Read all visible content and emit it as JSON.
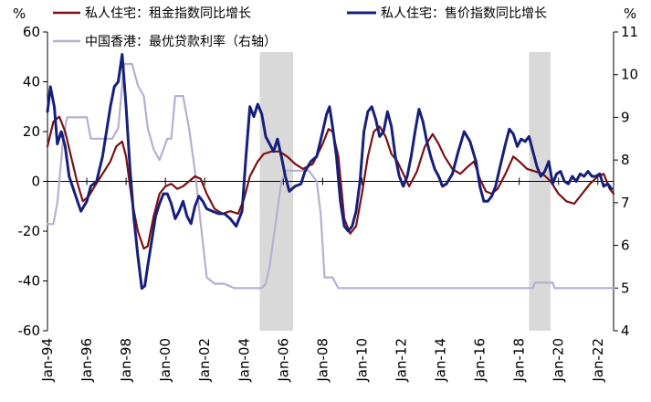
{
  "chart_data": {
    "type": "line",
    "title": "",
    "left_axis": {
      "unit": "%",
      "ylim": [
        -60,
        60
      ],
      "ticks": [
        60,
        40,
        20,
        0,
        -20,
        -40,
        -60
      ]
    },
    "right_axis": {
      "unit": "%",
      "ylim": [
        4,
        11
      ],
      "ticks": [
        11,
        10,
        9,
        8,
        7,
        6,
        5,
        4
      ]
    },
    "x_axis": {
      "range": [
        1994.0,
        2022.8
      ],
      "tick_labels": [
        "Jan-94",
        "Jan-96",
        "Jan-98",
        "Jan-00",
        "Jan-02",
        "Jan-04",
        "Jan-06",
        "Jan-08",
        "Jan-10",
        "Jan-12",
        "Jan-14",
        "Jan-16",
        "Jan-18",
        "Jan-20",
        "Jan-22"
      ],
      "tick_values": [
        1994,
        1996,
        1998,
        2000,
        2002,
        2004,
        2006,
        2008,
        2010,
        2012,
        2014,
        2016,
        2018,
        2020,
        2022
      ]
    },
    "grid": false,
    "legend_placement": "top",
    "shaded_periods": [
      [
        2004.8,
        2006.5
      ],
      [
        2018.5,
        2019.6
      ]
    ],
    "series": [
      {
        "name": "私人住宅：租金指数同比增长",
        "axis": "left",
        "color": "#7b1113",
        "points": [
          [
            1994.0,
            14
          ],
          [
            1994.3,
            24
          ],
          [
            1994.6,
            26
          ],
          [
            1994.9,
            20
          ],
          [
            1995.2,
            10
          ],
          [
            1995.5,
            0
          ],
          [
            1995.8,
            -8
          ],
          [
            1996.1,
            -6
          ],
          [
            1996.4,
            -2
          ],
          [
            1996.8,
            3
          ],
          [
            1997.2,
            8
          ],
          [
            1997.5,
            14
          ],
          [
            1997.8,
            16
          ],
          [
            1998.0,
            10
          ],
          [
            1998.3,
            -8
          ],
          [
            1998.6,
            -20
          ],
          [
            1998.9,
            -27
          ],
          [
            1999.1,
            -26
          ],
          [
            1999.4,
            -14
          ],
          [
            1999.7,
            -5
          ],
          [
            2000.0,
            -2
          ],
          [
            2000.3,
            -1
          ],
          [
            2000.6,
            -3
          ],
          [
            2000.9,
            -2
          ],
          [
            2001.2,
            0
          ],
          [
            2001.5,
            2
          ],
          [
            2001.8,
            1
          ],
          [
            2002.1,
            -5
          ],
          [
            2002.5,
            -11
          ],
          [
            2002.9,
            -13
          ],
          [
            2003.3,
            -12
          ],
          [
            2003.7,
            -13
          ],
          [
            2004.0,
            -7
          ],
          [
            2004.3,
            2
          ],
          [
            2004.7,
            8
          ],
          [
            2005.0,
            11
          ],
          [
            2005.4,
            12
          ],
          [
            2005.8,
            12
          ],
          [
            2006.2,
            10
          ],
          [
            2006.6,
            7
          ],
          [
            2007.0,
            5
          ],
          [
            2007.5,
            7
          ],
          [
            2008.0,
            15
          ],
          [
            2008.3,
            21
          ],
          [
            2008.5,
            20
          ],
          [
            2008.8,
            10
          ],
          [
            2009.1,
            -15
          ],
          [
            2009.4,
            -21
          ],
          [
            2009.7,
            -18
          ],
          [
            2010.0,
            -5
          ],
          [
            2010.3,
            10
          ],
          [
            2010.6,
            20
          ],
          [
            2010.9,
            22
          ],
          [
            2011.2,
            18
          ],
          [
            2011.5,
            11
          ],
          [
            2011.8,
            8
          ],
          [
            2012.1,
            3
          ],
          [
            2012.4,
            -2
          ],
          [
            2012.8,
            4
          ],
          [
            2013.2,
            14
          ],
          [
            2013.6,
            19
          ],
          [
            2013.9,
            15
          ],
          [
            2014.2,
            10
          ],
          [
            2014.6,
            5
          ],
          [
            2015.0,
            3
          ],
          [
            2015.4,
            6
          ],
          [
            2015.7,
            8
          ],
          [
            2016.0,
            1
          ],
          [
            2016.3,
            -4
          ],
          [
            2016.6,
            -5
          ],
          [
            2016.9,
            -3
          ],
          [
            2017.3,
            3
          ],
          [
            2017.7,
            10
          ],
          [
            2018.0,
            8
          ],
          [
            2018.4,
            5
          ],
          [
            2018.8,
            4
          ],
          [
            2019.2,
            3
          ],
          [
            2019.6,
            0
          ],
          [
            2020.0,
            -5
          ],
          [
            2020.4,
            -8
          ],
          [
            2020.8,
            -9
          ],
          [
            2021.2,
            -5
          ],
          [
            2021.6,
            -1
          ],
          [
            2022.0,
            2
          ],
          [
            2022.3,
            3
          ],
          [
            2022.6,
            -3
          ],
          [
            2022.8,
            -5
          ]
        ]
      },
      {
        "name": "私人住宅：售价指数同比增长",
        "axis": "left",
        "color": "#16207a",
        "points": [
          [
            1994.0,
            28
          ],
          [
            1994.15,
            38
          ],
          [
            1994.35,
            30
          ],
          [
            1994.5,
            15
          ],
          [
            1994.7,
            20
          ],
          [
            1994.9,
            14
          ],
          [
            1995.1,
            2
          ],
          [
            1995.4,
            -5
          ],
          [
            1995.7,
            -12
          ],
          [
            1996.0,
            -8
          ],
          [
            1996.2,
            -2
          ],
          [
            1996.5,
            0
          ],
          [
            1996.8,
            10
          ],
          [
            1997.0,
            20
          ],
          [
            1997.2,
            30
          ],
          [
            1997.4,
            38
          ],
          [
            1997.6,
            40
          ],
          [
            1997.8,
            51
          ],
          [
            1998.0,
            30
          ],
          [
            1998.2,
            5
          ],
          [
            1998.4,
            -15
          ],
          [
            1998.6,
            -30
          ],
          [
            1998.8,
            -43
          ],
          [
            1998.95,
            -42
          ],
          [
            1999.1,
            -34
          ],
          [
            1999.3,
            -24
          ],
          [
            1999.5,
            -14
          ],
          [
            1999.7,
            -9
          ],
          [
            1999.9,
            -5
          ],
          [
            2000.1,
            -5
          ],
          [
            2000.3,
            -9
          ],
          [
            2000.5,
            -15
          ],
          [
            2000.7,
            -12
          ],
          [
            2000.9,
            -8
          ],
          [
            2001.1,
            -14
          ],
          [
            2001.3,
            -17
          ],
          [
            2001.5,
            -10
          ],
          [
            2001.7,
            -6
          ],
          [
            2001.9,
            -8
          ],
          [
            2002.1,
            -11
          ],
          [
            2002.4,
            -12
          ],
          [
            2002.7,
            -13
          ],
          [
            2003.0,
            -13
          ],
          [
            2003.3,
            -15
          ],
          [
            2003.6,
            -18
          ],
          [
            2003.9,
            -12
          ],
          [
            2004.1,
            10
          ],
          [
            2004.3,
            30
          ],
          [
            2004.5,
            26
          ],
          [
            2004.7,
            31
          ],
          [
            2004.9,
            27
          ],
          [
            2005.1,
            18
          ],
          [
            2005.3,
            15
          ],
          [
            2005.5,
            12
          ],
          [
            2005.7,
            17
          ],
          [
            2005.9,
            10
          ],
          [
            2006.1,
            2
          ],
          [
            2006.3,
            -4
          ],
          [
            2006.6,
            -2
          ],
          [
            2006.9,
            -1
          ],
          [
            2007.1,
            4
          ],
          [
            2007.4,
            8
          ],
          [
            2007.7,
            10
          ],
          [
            2008.0,
            20
          ],
          [
            2008.2,
            27
          ],
          [
            2008.35,
            30
          ],
          [
            2008.5,
            22
          ],
          [
            2008.7,
            10
          ],
          [
            2008.9,
            -8
          ],
          [
            2009.1,
            -18
          ],
          [
            2009.3,
            -20
          ],
          [
            2009.5,
            -18
          ],
          [
            2009.7,
            -12
          ],
          [
            2009.9,
            0
          ],
          [
            2010.1,
            20
          ],
          [
            2010.3,
            28
          ],
          [
            2010.5,
            30
          ],
          [
            2010.7,
            25
          ],
          [
            2010.9,
            18
          ],
          [
            2011.1,
            20
          ],
          [
            2011.3,
            28
          ],
          [
            2011.5,
            22
          ],
          [
            2011.7,
            10
          ],
          [
            2011.9,
            2
          ],
          [
            2012.1,
            -2
          ],
          [
            2012.3,
            2
          ],
          [
            2012.5,
            10
          ],
          [
            2012.7,
            20
          ],
          [
            2012.9,
            29
          ],
          [
            2013.1,
            24
          ],
          [
            2013.3,
            16
          ],
          [
            2013.5,
            10
          ],
          [
            2013.7,
            5
          ],
          [
            2013.9,
            2
          ],
          [
            2014.1,
            -2
          ],
          [
            2014.3,
            -1
          ],
          [
            2014.6,
            3
          ],
          [
            2014.9,
            12
          ],
          [
            2015.2,
            20
          ],
          [
            2015.5,
            16
          ],
          [
            2015.8,
            8
          ],
          [
            2016.0,
            -2
          ],
          [
            2016.2,
            -8
          ],
          [
            2016.4,
            -8
          ],
          [
            2016.6,
            -6
          ],
          [
            2016.8,
            -2
          ],
          [
            2017.0,
            5
          ],
          [
            2017.3,
            15
          ],
          [
            2017.5,
            21
          ],
          [
            2017.7,
            19
          ],
          [
            2017.9,
            14
          ],
          [
            2018.1,
            17
          ],
          [
            2018.3,
            16
          ],
          [
            2018.5,
            18
          ],
          [
            2018.7,
            12
          ],
          [
            2018.9,
            6
          ],
          [
            2019.1,
            2
          ],
          [
            2019.3,
            4
          ],
          [
            2019.5,
            8
          ],
          [
            2019.7,
            -1
          ],
          [
            2019.9,
            3
          ],
          [
            2020.1,
            4
          ],
          [
            2020.3,
            0
          ],
          [
            2020.5,
            -1
          ],
          [
            2020.7,
            2
          ],
          [
            2020.9,
            0
          ],
          [
            2021.1,
            3
          ],
          [
            2021.3,
            2
          ],
          [
            2021.5,
            4
          ],
          [
            2021.7,
            2
          ],
          [
            2021.9,
            2
          ],
          [
            2022.1,
            3
          ],
          [
            2022.3,
            -2
          ],
          [
            2022.5,
            -1
          ],
          [
            2022.7,
            -3
          ]
        ]
      },
      {
        "name": "中国香港：最优贷款利率（右轴）",
        "axis": "right",
        "color": "#b8aed0",
        "points": [
          [
            1994.0,
            6.5
          ],
          [
            1994.3,
            6.5
          ],
          [
            1994.5,
            7.0
          ],
          [
            1994.8,
            8.5
          ],
          [
            1995.0,
            9.0
          ],
          [
            1995.5,
            9.0
          ],
          [
            1996.0,
            9.0
          ],
          [
            1996.2,
            8.5
          ],
          [
            1996.6,
            8.5
          ],
          [
            1997.0,
            8.5
          ],
          [
            1997.3,
            8.5
          ],
          [
            1997.6,
            8.75
          ],
          [
            1997.9,
            10.25
          ],
          [
            1998.3,
            10.25
          ],
          [
            1998.6,
            9.75
          ],
          [
            1998.9,
            9.5
          ],
          [
            1999.1,
            8.75
          ],
          [
            1999.4,
            8.25
          ],
          [
            1999.7,
            8.0
          ],
          [
            1999.9,
            8.25
          ],
          [
            2000.1,
            8.5
          ],
          [
            2000.3,
            8.5
          ],
          [
            2000.5,
            9.5
          ],
          [
            2000.9,
            9.5
          ],
          [
            2001.2,
            8.75
          ],
          [
            2001.5,
            7.75
          ],
          [
            2001.8,
            6.5
          ],
          [
            2002.1,
            5.25
          ],
          [
            2002.5,
            5.1
          ],
          [
            2003.0,
            5.1
          ],
          [
            2003.5,
            5.0
          ],
          [
            2004.0,
            5.0
          ],
          [
            2004.5,
            5.0
          ],
          [
            2004.9,
            5.0
          ],
          [
            2005.1,
            5.1
          ],
          [
            2005.3,
            5.5
          ],
          [
            2005.6,
            6.5
          ],
          [
            2005.9,
            7.5
          ],
          [
            2006.1,
            7.75
          ],
          [
            2006.5,
            7.75
          ],
          [
            2006.9,
            7.75
          ],
          [
            2007.3,
            7.75
          ],
          [
            2007.7,
            7.5
          ],
          [
            2007.9,
            6.75
          ],
          [
            2008.1,
            5.25
          ],
          [
            2008.5,
            5.25
          ],
          [
            2008.8,
            5.0
          ],
          [
            2010.0,
            5.0
          ],
          [
            2012.0,
            5.0
          ],
          [
            2014.0,
            5.0
          ],
          [
            2016.0,
            5.0
          ],
          [
            2018.0,
            5.0
          ],
          [
            2018.7,
            5.0
          ],
          [
            2018.8,
            5.125
          ],
          [
            2019.7,
            5.125
          ],
          [
            2019.8,
            5.0
          ],
          [
            2020.5,
            5.0
          ],
          [
            2022.8,
            5.0
          ]
        ]
      }
    ]
  }
}
